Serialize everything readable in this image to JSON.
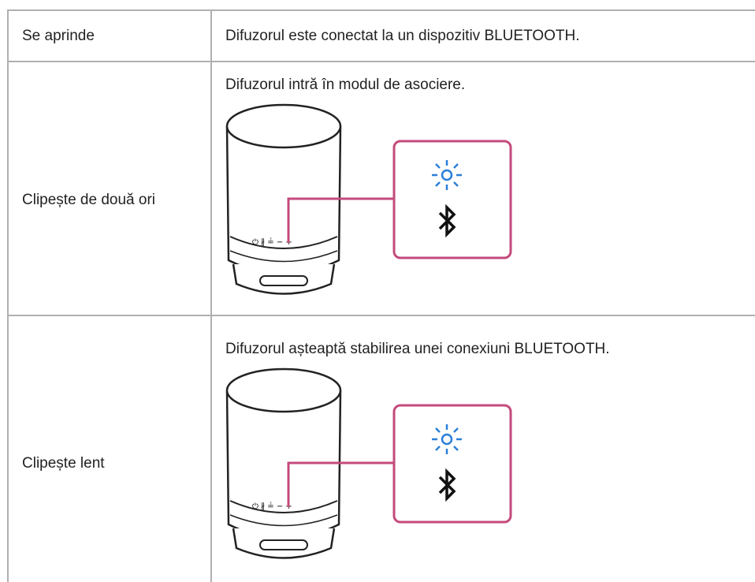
{
  "table": {
    "rows": [
      [
        "Se aprinde",
        "Difuzorul este conectat la un dispozitiv BLUETOOTH."
      ],
      [
        "Clipește de două ori",
        "Difuzorul intră în modul de asociere."
      ],
      [
        "Clipește lent",
        "Difuzorul așteaptă stabilirea unei conexiuni BLUETOOTH."
      ]
    ]
  }
}
